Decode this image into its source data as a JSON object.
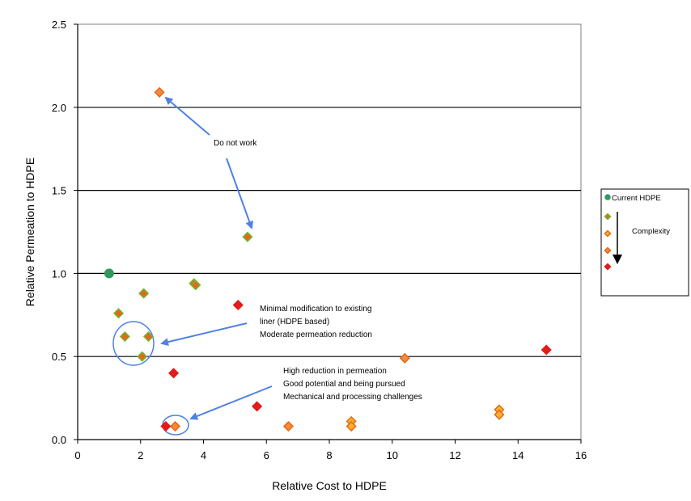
{
  "chart_data": {
    "type": "scatter",
    "title": "",
    "xlabel": "Relative Cost to HDPE",
    "ylabel": "Relative Permeation to HDPE",
    "xlim": [
      0,
      16
    ],
    "ylim": [
      0,
      2.5
    ],
    "xticks": [
      0,
      2,
      4,
      6,
      8,
      10,
      12,
      14,
      16
    ],
    "yticks": [
      0.0,
      0.5,
      1.0,
      1.5,
      2.0,
      2.5
    ],
    "ytick_labels": [
      "0.0",
      "0.5",
      "1.0",
      "1.5",
      "2.0",
      "2.5"
    ],
    "grid": "horizontal",
    "legend_position": "right",
    "series": [
      {
        "name": "Current HDPE",
        "marker": "circle",
        "fill": "#2e9a5e",
        "stroke": "#2e9a5e",
        "points": [
          [
            1.0,
            1.0
          ]
        ]
      },
      {
        "marker": "diamond",
        "fill": "#e8661c",
        "stroke": "#6ab82e",
        "points": [
          [
            5.4,
            1.22
          ],
          [
            3.7,
            0.94
          ],
          [
            3.75,
            0.93
          ],
          [
            2.1,
            0.88
          ],
          [
            1.3,
            0.76
          ],
          [
            1.5,
            0.62
          ],
          [
            2.25,
            0.62
          ],
          [
            2.05,
            0.5
          ]
        ]
      },
      {
        "marker": "diamond",
        "fill": "#f5b22a",
        "stroke": "#e8661c",
        "points": [
          [
            13.4,
            0.18
          ],
          [
            13.4,
            0.15
          ],
          [
            8.7,
            0.11
          ],
          [
            8.7,
            0.08
          ]
        ]
      },
      {
        "marker": "diamond",
        "fill": "#f58a3a",
        "stroke": "#e8661c",
        "points": [
          [
            2.6,
            2.09
          ],
          [
            10.4,
            0.49
          ],
          [
            6.7,
            0.08
          ],
          [
            3.1,
            0.08
          ]
        ]
      },
      {
        "marker": "diamond",
        "fill": "#e21b1b",
        "stroke": "#e21b1b",
        "points": [
          [
            5.1,
            0.81
          ],
          [
            14.9,
            0.54
          ],
          [
            3.05,
            0.4
          ],
          [
            5.7,
            0.2
          ],
          [
            2.8,
            0.08
          ]
        ]
      }
    ],
    "legend": {
      "items": [
        "Current HDPE",
        "",
        "",
        "",
        ""
      ],
      "arrow_label": "Complexity"
    },
    "annotations": [
      {
        "lines": [
          "Do not work"
        ]
      },
      {
        "lines": [
          "Minimal modification to existing",
          "liner (HDPE based)",
          "Moderate permeation reduction"
        ]
      },
      {
        "lines": [
          "High reduction in permeation",
          "Good potential and being pursued",
          "Mechanical and processing challenges"
        ]
      }
    ],
    "colors": {
      "arrow": "#4f81e6",
      "grid": "#000000",
      "circle": "#4f81e6"
    }
  }
}
